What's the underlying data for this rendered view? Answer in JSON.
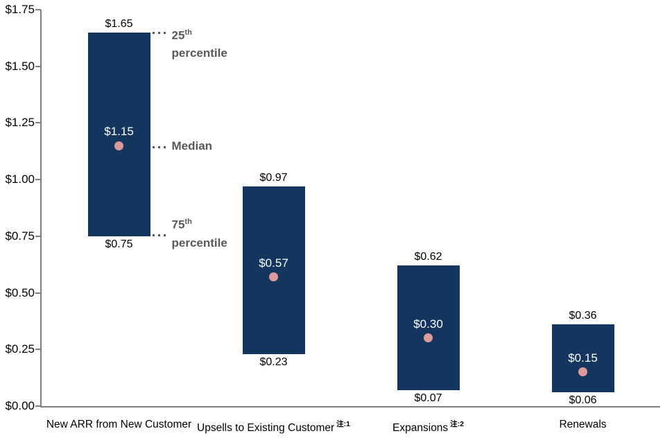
{
  "chart_data": {
    "type": "bar",
    "subtype": "floating-range-bars-with-median-dots",
    "title": "",
    "xlabel": "",
    "ylabel": "",
    "ylim": [
      0,
      1.75
    ],
    "ytick_step": 0.25,
    "yticks": [
      "$0.00",
      "$0.25",
      "$0.50",
      "$0.75",
      "$1.00",
      "$1.25",
      "$1.50",
      "$1.75"
    ],
    "grid": false,
    "legend": "none",
    "categories": [
      "New ARR from New Customer",
      "Upsells to Existing Customer",
      "Expansions",
      "Renewals"
    ],
    "bars": [
      {
        "category": "New ARR from New Customer",
        "note": "",
        "p25": 1.65,
        "median": 1.15,
        "p75": 0.75,
        "p25_label": "$1.65",
        "median_label": "$1.15",
        "p75_label": "$0.75"
      },
      {
        "category": "Upsells to Existing Customer",
        "note": "注:1",
        "p25": 0.97,
        "median": 0.57,
        "p75": 0.23,
        "p25_label": "$0.97",
        "median_label": "$0.57",
        "p75_label": "$0.23"
      },
      {
        "category": "Expansions",
        "note": "注:2",
        "p25": 0.62,
        "median": 0.3,
        "p75": 0.07,
        "p25_label": "$0.62",
        "median_label": "$0.30",
        "p75_label": "$0.07"
      },
      {
        "category": "Renewals",
        "note": "",
        "p25": 0.36,
        "median": 0.15,
        "p75": 0.06,
        "p25_label": "$0.36",
        "median_label": "$0.15",
        "p75_label": "$0.06"
      }
    ],
    "annotations": [
      {
        "target": "p25",
        "line1": "25",
        "sup": "th",
        "line2": "percentile"
      },
      {
        "target": "median",
        "line1": "Median",
        "sup": "",
        "line2": ""
      },
      {
        "target": "p75",
        "line1": "75",
        "sup": "th",
        "line2": "percentile"
      }
    ],
    "colors": {
      "bar": "#14355E",
      "median_dot": "#DC9A9A",
      "annotation_text": "#595959",
      "axis": "#7F7F7F",
      "value_label": "#000000",
      "median_label": "#FFFFFF"
    }
  }
}
